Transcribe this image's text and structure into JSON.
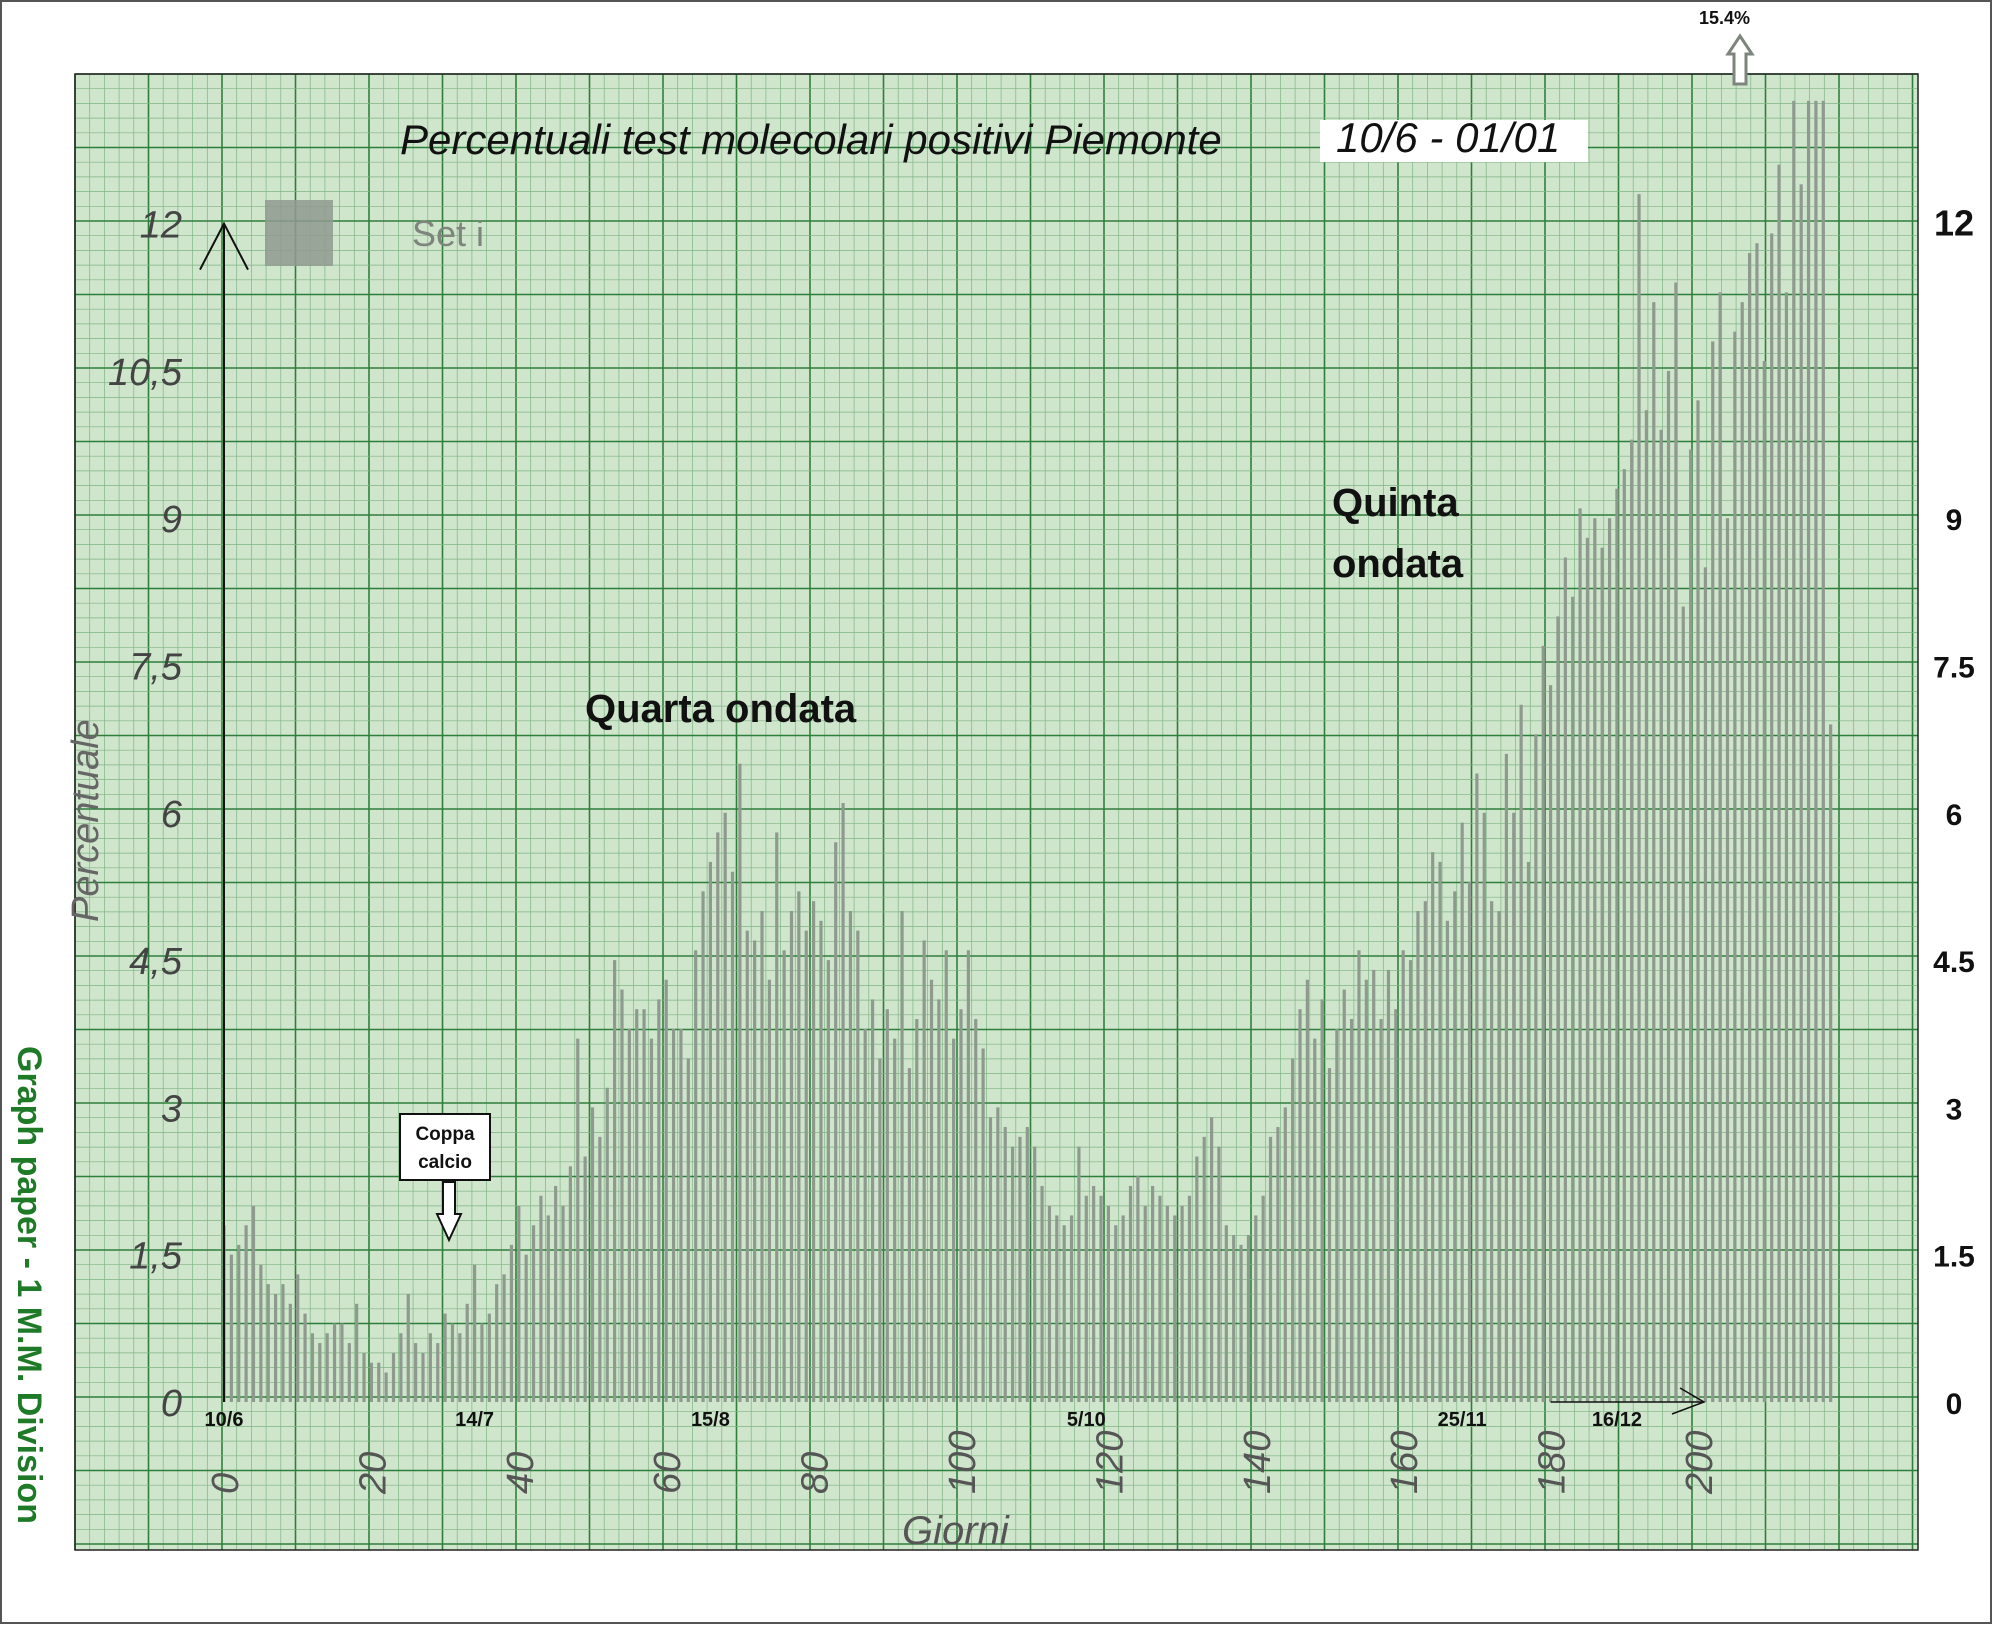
{
  "chart_data": {
    "type": "bar",
    "title": "Percentuali test molecolari positivi Piemonte",
    "title_dates": "10/6 - 01/01",
    "xlabel": "Giorni",
    "ylabel": "Percentuale",
    "xlim": [
      0,
      212
    ],
    "ylim": [
      0,
      12.5
    ],
    "x_ticks": [
      "0",
      "20",
      "40",
      "60",
      "80",
      "100",
      "120",
      "140",
      "160",
      "180",
      "200"
    ],
    "y_ticks_left": [
      "0",
      "1,5",
      "3",
      "4,5",
      "6",
      "7,5",
      "9",
      "10,5",
      "12"
    ],
    "y_ticks_right": [
      "0",
      "1.5",
      "3",
      "4.5",
      "6",
      "7.5",
      "9",
      "12"
    ],
    "legend": {
      "label": "Set i",
      "color": "#8f9a8f",
      "position": "top-left"
    },
    "date_labels": [
      {
        "day": 0,
        "text": "10/6"
      },
      {
        "day": 34,
        "text": "14/7"
      },
      {
        "day": 66,
        "text": "15/8"
      },
      {
        "day": 117,
        "text": "5/10"
      },
      {
        "day": 168,
        "text": "25/11"
      },
      {
        "day": 189,
        "text": "16/12"
      }
    ],
    "annotations": {
      "coppa": "Coppa calcio",
      "quarta": "Quarta ondata",
      "quinta_line1": "Quinta",
      "quinta_line2": "ondata",
      "peak": "15.4%"
    },
    "peak_value": 15.4,
    "values": [
      1.8,
      1.5,
      1.6,
      1.8,
      2.0,
      1.4,
      1.2,
      1.1,
      1.2,
      1.0,
      1.3,
      0.9,
      0.7,
      0.6,
      0.7,
      0.8,
      0.8,
      0.6,
      1.0,
      0.5,
      0.4,
      0.4,
      0.3,
      0.5,
      0.7,
      1.1,
      0.6,
      0.5,
      0.7,
      0.6,
      0.9,
      0.8,
      0.7,
      1.0,
      1.4,
      0.8,
      0.9,
      1.2,
      1.3,
      1.6,
      2.0,
      1.5,
      1.8,
      2.1,
      1.9,
      2.2,
      2.0,
      2.4,
      3.7,
      2.5,
      3.0,
      2.7,
      3.2,
      4.5,
      4.2,
      3.8,
      4.0,
      4.0,
      3.7,
      4.1,
      4.3,
      3.8,
      3.8,
      3.5,
      4.6,
      5.2,
      5.5,
      5.8,
      6.0,
      5.4,
      6.5,
      4.8,
      4.7,
      5.0,
      4.3,
      5.8,
      4.6,
      5.0,
      5.2,
      4.8,
      5.1,
      4.9,
      4.5,
      5.7,
      6.1,
      5.0,
      4.8,
      3.8,
      4.1,
      3.5,
      4.0,
      3.7,
      5.0,
      3.4,
      3.9,
      4.7,
      4.3,
      4.1,
      4.6,
      3.7,
      4.0,
      4.6,
      3.9,
      3.6,
      2.9,
      3.0,
      2.8,
      2.6,
      2.7,
      2.8,
      2.6,
      2.2,
      2.0,
      1.9,
      1.8,
      1.9,
      2.6,
      2.1,
      2.2,
      2.1,
      2.0,
      1.8,
      1.9,
      2.2,
      2.3,
      2.0,
      2.2,
      2.1,
      2.0,
      1.9,
      2.0,
      2.1,
      2.5,
      2.7,
      2.9,
      2.6,
      1.8,
      1.7,
      1.6,
      1.7,
      1.9,
      2.1,
      2.7,
      2.8,
      3.0,
      3.5,
      4.0,
      4.3,
      3.7,
      4.1,
      3.4,
      3.8,
      4.2,
      3.9,
      4.6,
      4.3,
      4.4,
      3.9,
      4.4,
      4.0,
      4.6,
      4.5,
      5.0,
      5.1,
      5.6,
      5.5,
      4.9,
      5.2,
      5.9,
      5.3,
      6.4,
      6.0,
      5.1,
      5.0,
      6.6,
      6.0,
      7.1,
      5.5,
      6.8,
      7.7,
      7.3,
      8.0,
      8.6,
      8.2,
      9.1,
      8.8,
      9.0,
      8.7,
      9.0,
      9.3,
      9.5,
      9.8,
      12.3,
      10.1,
      11.2,
      9.9,
      10.5,
      11.4,
      8.1,
      9.7,
      10.2,
      8.5,
      10.8,
      11.3,
      9.0,
      10.9,
      11.2,
      11.7,
      11.8,
      10.6,
      11.9,
      12.6,
      11.3,
      13.6,
      12.4,
      13.6,
      14.8,
      15.4,
      6.9
    ],
    "grid": true
  },
  "watermark": "Graph paper - 1 M.M. Division",
  "colors": {
    "paper": "#cfe5cc",
    "grid_fine": "#7fb584",
    "grid_major": "#2f7f3c",
    "bar": "#8f9a8f",
    "watermark": "#1f7a28"
  }
}
